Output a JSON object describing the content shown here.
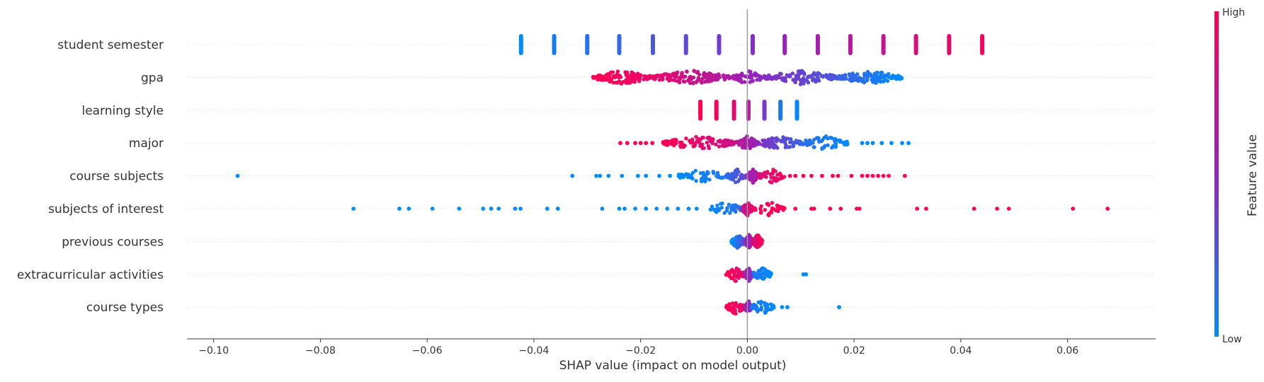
{
  "chart_data": {
    "type": "scatter",
    "subtype": "shap-beeswarm",
    "xlabel": "SHAP value (impact on model output)",
    "xlim": [
      -0.105,
      0.0765
    ],
    "x_ticks": [
      -0.1,
      -0.08,
      -0.06,
      -0.04,
      -0.02,
      0.0,
      0.02,
      0.04,
      0.06
    ],
    "x_tick_labels": [
      "−0.10",
      "−0.08",
      "−0.06",
      "−0.04",
      "−0.02",
      "0.00",
      "0.02",
      "0.04",
      "0.06"
    ],
    "grid": false,
    "colors": {
      "low": "#008bfb",
      "mid": "#9424bd",
      "high": "#ff0052",
      "zero_line": "#999999"
    },
    "colorbar": {
      "title": "Feature value",
      "high_label": "High",
      "low_label": "Low",
      "placement": "right"
    },
    "features": [
      {
        "name": "student semester",
        "kind": "bands",
        "bands": [
          {
            "x": -0.0424,
            "v": 0.0
          },
          {
            "x": -0.0362,
            "v": 0.07
          },
          {
            "x": -0.03,
            "v": 0.12
          },
          {
            "x": -0.024,
            "v": 0.18
          },
          {
            "x": -0.0177,
            "v": 0.25
          },
          {
            "x": -0.0115,
            "v": 0.32
          },
          {
            "x": -0.0053,
            "v": 0.38
          },
          {
            "x": 0.001,
            "v": 0.45
          },
          {
            "x": 0.007,
            "v": 0.52
          },
          {
            "x": 0.0132,
            "v": 0.58
          },
          {
            "x": 0.0193,
            "v": 0.65
          },
          {
            "x": 0.0255,
            "v": 0.72
          },
          {
            "x": 0.0316,
            "v": 0.8
          },
          {
            "x": 0.0378,
            "v": 0.88
          },
          {
            "x": 0.044,
            "v": 0.95
          }
        ]
      },
      {
        "name": "gpa",
        "kind": "segments",
        "segments": [
          {
            "x0": -0.029,
            "x1": -0.018,
            "v0": 1.0,
            "v1": 0.9,
            "n": 120
          },
          {
            "x0": -0.018,
            "x1": -0.003,
            "v0": 0.9,
            "v1": 0.6,
            "n": 130
          },
          {
            "x0": -0.003,
            "x1": 0.003,
            "v0": 0.6,
            "v1": 0.45,
            "n": 40
          },
          {
            "x0": 0.003,
            "x1": 0.017,
            "v0": 0.45,
            "v1": 0.25,
            "n": 120
          },
          {
            "x0": 0.017,
            "x1": 0.029,
            "v0": 0.2,
            "v1": 0.0,
            "n": 130
          }
        ],
        "points": [
          {
            "x": 0.0005,
            "v": 0.55
          },
          {
            "x": 0.0004,
            "v": 0.5
          }
        ]
      },
      {
        "name": "learning style",
        "kind": "bands",
        "bands": [
          {
            "x": -0.0088,
            "v": 1.0
          },
          {
            "x": -0.0058,
            "v": 0.95
          },
          {
            "x": -0.0025,
            "v": 0.85
          },
          {
            "x": 0.0002,
            "v": 0.65
          },
          {
            "x": 0.0032,
            "v": 0.4
          },
          {
            "x": 0.0062,
            "v": 0.1
          },
          {
            "x": 0.0093,
            "v": 0.02
          }
        ]
      },
      {
        "name": "major",
        "kind": "segments",
        "segments": [
          {
            "x0": -0.016,
            "x1": -0.002,
            "v0": 1.0,
            "v1": 0.75,
            "n": 110
          },
          {
            "x0": -0.002,
            "x1": 0.002,
            "v0": 0.7,
            "v1": 0.5,
            "n": 90
          },
          {
            "x0": 0.002,
            "x1": 0.01,
            "v0": 0.45,
            "v1": 0.2,
            "n": 70
          },
          {
            "x0": 0.01,
            "x1": 0.019,
            "v0": 0.15,
            "v1": 0.0,
            "n": 60
          }
        ],
        "points": [
          {
            "x": -0.0238,
            "v": 1.0
          },
          {
            "x": -0.0225,
            "v": 1.0
          },
          {
            "x": -0.021,
            "v": 1.0
          },
          {
            "x": -0.02,
            "v": 0.95
          },
          {
            "x": -0.019,
            "v": 1.0
          },
          {
            "x": -0.0178,
            "v": 0.95
          },
          {
            "x": 0.0215,
            "v": 0.0
          },
          {
            "x": 0.0225,
            "v": 0.0
          },
          {
            "x": 0.0235,
            "v": 0.0
          },
          {
            "x": 0.0252,
            "v": 0.0
          },
          {
            "x": 0.027,
            "v": 0.0
          },
          {
            "x": 0.029,
            "v": 0.0
          },
          {
            "x": 0.0302,
            "v": 0.0
          }
        ]
      },
      {
        "name": "course subjects",
        "kind": "segments",
        "segments": [
          {
            "x0": -0.013,
            "x1": -0.004,
            "v0": 0.0,
            "v1": 0.1,
            "n": 50
          },
          {
            "x0": -0.004,
            "x1": 0.0,
            "v0": 0.15,
            "v1": 0.35,
            "n": 50
          },
          {
            "x0": 0.0,
            "x1": 0.002,
            "v0": 0.55,
            "v1": 0.6,
            "n": 90
          },
          {
            "x0": 0.002,
            "x1": 0.007,
            "v0": 0.8,
            "v1": 0.95,
            "n": 40
          }
        ],
        "points": [
          {
            "x": -0.0955,
            "v": 0.0
          },
          {
            "x": -0.0328,
            "v": 0.0
          },
          {
            "x": -0.0283,
            "v": 0.0
          },
          {
            "x": -0.0276,
            "v": 0.0
          },
          {
            "x": -0.026,
            "v": 0.0
          },
          {
            "x": -0.0235,
            "v": 0.0
          },
          {
            "x": -0.0205,
            "v": 0.0
          },
          {
            "x": -0.019,
            "v": 0.0
          },
          {
            "x": -0.0165,
            "v": 0.0
          },
          {
            "x": -0.0145,
            "v": 0.0
          },
          {
            "x": 0.008,
            "v": 1.0
          },
          {
            "x": 0.009,
            "v": 1.0
          },
          {
            "x": 0.0105,
            "v": 1.0
          },
          {
            "x": 0.012,
            "v": 1.0
          },
          {
            "x": 0.014,
            "v": 1.0
          },
          {
            "x": 0.016,
            "v": 1.0
          },
          {
            "x": 0.017,
            "v": 1.0
          },
          {
            "x": 0.0195,
            "v": 1.0
          },
          {
            "x": 0.0215,
            "v": 1.0
          },
          {
            "x": 0.0225,
            "v": 1.0
          },
          {
            "x": 0.0235,
            "v": 1.0
          },
          {
            "x": 0.0245,
            "v": 1.0
          },
          {
            "x": 0.0255,
            "v": 1.0
          },
          {
            "x": 0.0265,
            "v": 1.0
          },
          {
            "x": 0.0295,
            "v": 1.0
          }
        ]
      },
      {
        "name": "subjects of interest",
        "kind": "segments",
        "segments": [
          {
            "x0": -0.007,
            "x1": -0.001,
            "v0": 0.0,
            "v1": 0.15,
            "n": 40
          },
          {
            "x0": -0.001,
            "x1": 0.001,
            "v0": 0.7,
            "v1": 0.9,
            "n": 60
          },
          {
            "x0": 0.001,
            "x1": 0.007,
            "v0": 0.95,
            "v1": 1.0,
            "n": 40
          }
        ],
        "points": [
          {
            "x": -0.0738,
            "v": 0.0
          },
          {
            "x": -0.0652,
            "v": 0.0
          },
          {
            "x": -0.0634,
            "v": 0.0
          },
          {
            "x": -0.059,
            "v": 0.0
          },
          {
            "x": -0.054,
            "v": 0.0
          },
          {
            "x": -0.0495,
            "v": 0.0
          },
          {
            "x": -0.048,
            "v": 0.0
          },
          {
            "x": -0.0466,
            "v": 0.0
          },
          {
            "x": -0.0435,
            "v": 0.0
          },
          {
            "x": -0.0425,
            "v": 0.0
          },
          {
            "x": -0.0375,
            "v": 0.0
          },
          {
            "x": -0.0355,
            "v": 0.0
          },
          {
            "x": -0.0272,
            "v": 0.0
          },
          {
            "x": -0.024,
            "v": 0.0
          },
          {
            "x": -0.023,
            "v": 0.0
          },
          {
            "x": -0.021,
            "v": 0.0
          },
          {
            "x": -0.019,
            "v": 0.0
          },
          {
            "x": -0.017,
            "v": 0.0
          },
          {
            "x": -0.015,
            "v": 0.0
          },
          {
            "x": -0.013,
            "v": 0.0
          },
          {
            "x": -0.011,
            "v": 0.0
          },
          {
            "x": -0.0095,
            "v": 0.0
          },
          {
            "x": 0.009,
            "v": 1.0
          },
          {
            "x": 0.012,
            "v": 1.0
          },
          {
            "x": 0.0125,
            "v": 1.0
          },
          {
            "x": 0.0155,
            "v": 1.0
          },
          {
            "x": 0.0175,
            "v": 1.0
          },
          {
            "x": 0.0205,
            "v": 1.0
          },
          {
            "x": 0.021,
            "v": 1.0
          },
          {
            "x": 0.0318,
            "v": 1.0
          },
          {
            "x": 0.0335,
            "v": 1.0
          },
          {
            "x": 0.0425,
            "v": 1.0
          },
          {
            "x": 0.0468,
            "v": 1.0
          },
          {
            "x": 0.049,
            "v": 1.0
          },
          {
            "x": 0.061,
            "v": 1.0
          },
          {
            "x": 0.0675,
            "v": 1.0
          }
        ]
      },
      {
        "name": "previous courses",
        "kind": "segments",
        "segments": [
          {
            "x0": -0.003,
            "x1": -0.0005,
            "v0": 0.0,
            "v1": 0.3,
            "n": 140
          },
          {
            "x0": -0.0005,
            "x1": 0.001,
            "v0": 0.45,
            "v1": 0.65,
            "n": 120
          },
          {
            "x0": 0.001,
            "x1": 0.0028,
            "v0": 0.8,
            "v1": 1.0,
            "n": 140
          }
        ]
      },
      {
        "name": "extracurricular activities",
        "kind": "segments",
        "segments": [
          {
            "x0": -0.004,
            "x1": -0.0005,
            "v0": 1.0,
            "v1": 0.85,
            "n": 50
          },
          {
            "x0": -0.0005,
            "x1": 0.001,
            "v0": 0.6,
            "v1": 0.4,
            "n": 70
          },
          {
            "x0": 0.001,
            "x1": 0.0045,
            "v0": 0.1,
            "v1": 0.0,
            "n": 50
          }
        ],
        "points": [
          {
            "x": 0.0105,
            "v": 0.0
          },
          {
            "x": 0.011,
            "v": 0.0
          }
        ]
      },
      {
        "name": "course types",
        "kind": "segments",
        "segments": [
          {
            "x0": -0.004,
            "x1": -0.0005,
            "v0": 1.0,
            "v1": 0.9,
            "n": 45
          },
          {
            "x0": -0.0005,
            "x1": 0.0008,
            "v0": 0.6,
            "v1": 0.4,
            "n": 70
          },
          {
            "x0": 0.0008,
            "x1": 0.005,
            "v0": 0.1,
            "v1": 0.0,
            "n": 50
          }
        ],
        "points": [
          {
            "x": 0.0065,
            "v": 0.0
          },
          {
            "x": 0.0075,
            "v": 0.0
          },
          {
            "x": 0.0172,
            "v": 0.0
          }
        ]
      }
    ]
  }
}
